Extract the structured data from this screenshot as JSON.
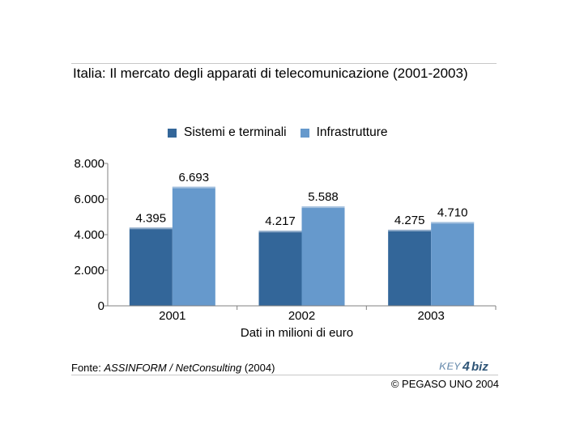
{
  "title": "Italia: Il mercato degli apparati di telecomunicazione (2001-2003)",
  "source": {
    "prefix": "Fonte: ",
    "italic": "ASSINFORM / NetConsulting",
    "suffix": " (2004)"
  },
  "copyright": "© PEGASO UNO 2004",
  "logo": {
    "text_left": "KEY",
    "text_mid": "4",
    "text_right": "biz"
  },
  "colors": {
    "series1": "#336699",
    "series2": "#6699cc",
    "axis": "#808080",
    "rule": "#c8c8c8"
  },
  "chart_data": {
    "type": "bar",
    "categories": [
      "2001",
      "2002",
      "2003"
    ],
    "series": [
      {
        "name": "Sistemi e terminali",
        "values": [
          4395,
          4217,
          4275
        ],
        "labels": [
          "4.395",
          "4.217",
          "4.275"
        ]
      },
      {
        "name": "Infrastrutture",
        "values": [
          6693,
          5588,
          4710
        ],
        "labels": [
          "6.693",
          "5.588",
          "4.710"
        ]
      }
    ],
    "xlabel": "Dati in milioni di euro",
    "ylabel": "",
    "ylim": [
      0,
      8000
    ],
    "yticks": [
      0,
      2000,
      4000,
      6000,
      8000
    ],
    "ytick_labels": [
      "0",
      "2.000",
      "4.000",
      "6.000",
      "8.000"
    ],
    "grid": false,
    "legend_position": "top"
  }
}
